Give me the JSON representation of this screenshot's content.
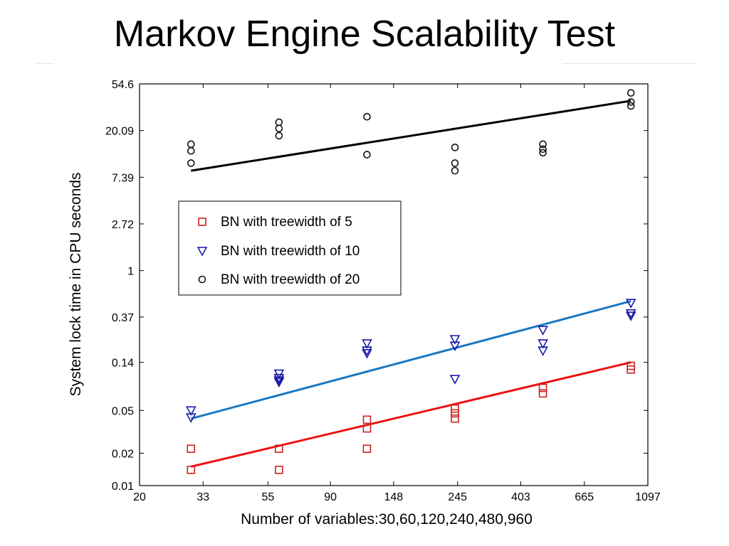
{
  "slide": {
    "title": "Markov Engine Scalability Test"
  },
  "chart_data": {
    "type": "scatter",
    "scale": {
      "x": "log",
      "y": "log"
    },
    "grid": false,
    "xlabel": "Number of variables:30,60,120,240,480,960",
    "ylabel": "System lock time in CPU seconds",
    "xlim": [
      20,
      1097
    ],
    "ylim": [
      0.01,
      54.6
    ],
    "x_ticks": [
      20,
      33,
      55,
      90,
      148,
      245,
      403,
      665,
      1097
    ],
    "x_tick_labels": [
      "20",
      "33",
      "55",
      "90",
      "148",
      "245",
      "403",
      "665",
      "1097"
    ],
    "y_ticks": [
      0.01,
      0.02,
      0.05,
      0.14,
      0.37,
      1,
      2.72,
      7.39,
      20.09,
      54.6
    ],
    "y_tick_labels": [
      "0.01",
      "0.02",
      "0.05",
      "0.14",
      "0.37",
      "1",
      "2.72",
      "7.39",
      "20.09",
      "54.6"
    ],
    "legend": {
      "position": "center-left"
    },
    "series": [
      {
        "name": "BN with treewidth of 5",
        "marker": "square",
        "color": "#cc2222",
        "line_color": "#ee1111",
        "points": [
          [
            30,
            0.022
          ],
          [
            30,
            0.014
          ],
          [
            60,
            0.022
          ],
          [
            60,
            0.014
          ],
          [
            120,
            0.041
          ],
          [
            120,
            0.034
          ],
          [
            120,
            0.022
          ],
          [
            240,
            0.052
          ],
          [
            240,
            0.047
          ],
          [
            240,
            0.042
          ],
          [
            480,
            0.081
          ],
          [
            480,
            0.072
          ],
          [
            960,
            0.13
          ],
          [
            960,
            0.12
          ]
        ],
        "fit": [
          [
            30,
            0.015
          ],
          [
            960,
            0.14
          ]
        ]
      },
      {
        "name": "BN with treewidth of 10",
        "marker": "triangle-down",
        "color": "#1a1aaa",
        "line_color": "#1a78c2",
        "points": [
          [
            30,
            0.05
          ],
          [
            30,
            0.043
          ],
          [
            60,
            0.11
          ],
          [
            60,
            0.1
          ],
          [
            60,
            0.095
          ],
          [
            60,
            0.092
          ],
          [
            120,
            0.21
          ],
          [
            120,
            0.18
          ],
          [
            120,
            0.17
          ],
          [
            240,
            0.23
          ],
          [
            240,
            0.2
          ],
          [
            240,
            0.098
          ],
          [
            480,
            0.28
          ],
          [
            480,
            0.21
          ],
          [
            480,
            0.18
          ],
          [
            960,
            0.5
          ],
          [
            960,
            0.4
          ],
          [
            960,
            0.38
          ]
        ],
        "fit": [
          [
            30,
            0.042
          ],
          [
            960,
            0.52
          ]
        ]
      },
      {
        "name": "BN with treewidth of 20",
        "marker": "circle",
        "color": "#111111",
        "line_color": "#000000",
        "points": [
          [
            30,
            15
          ],
          [
            30,
            13
          ],
          [
            30,
            10
          ],
          [
            60,
            24
          ],
          [
            60,
            21
          ],
          [
            60,
            18
          ],
          [
            120,
            27
          ],
          [
            120,
            12
          ],
          [
            240,
            14
          ],
          [
            240,
            10
          ],
          [
            240,
            8.5
          ],
          [
            480,
            15
          ],
          [
            480,
            13.5
          ],
          [
            480,
            12.5
          ],
          [
            960,
            45
          ],
          [
            960,
            37
          ],
          [
            960,
            34
          ]
        ],
        "fit": [
          [
            30,
            8.5
          ],
          [
            960,
            38
          ]
        ]
      }
    ]
  }
}
